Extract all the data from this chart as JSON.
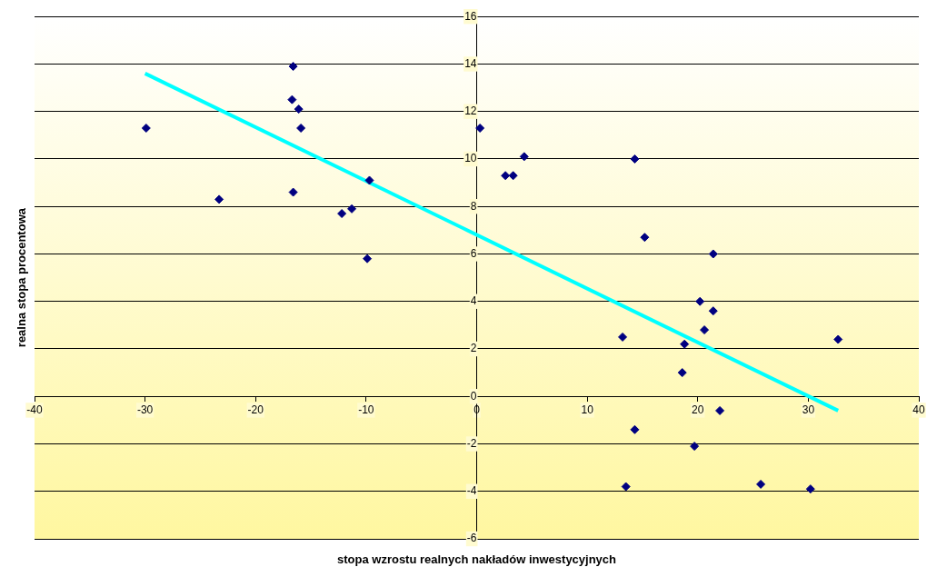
{
  "chart_data": {
    "type": "scatter",
    "xlabel": "stopa wzrostu realnych nakładów inwestycyjnych",
    "ylabel": "realna stopa procentowa",
    "xlim": [
      -40,
      40
    ],
    "xticks": [
      -40,
      -30,
      -20,
      -10,
      0,
      10,
      20,
      30,
      40
    ],
    "ylim": [
      -6,
      16
    ],
    "yticks": [
      -6,
      -4,
      -2,
      0,
      2,
      4,
      6,
      8,
      10,
      12,
      14,
      16
    ],
    "grid": "y",
    "legend": false,
    "series": [
      {
        "marker": "diamond",
        "color": "#000080",
        "x": [
          -29.9,
          -23.3,
          -16.7,
          -16.6,
          -16.1,
          -15.9,
          -16.6,
          -12.2,
          -11.3,
          -9.7,
          -9.9,
          0.3,
          2.6,
          3.3,
          4.3,
          14.3,
          15.2,
          21.4,
          20.2,
          21.4,
          20.6,
          13.2,
          18.8,
          18.6,
          32.7,
          22.0,
          14.3,
          19.7,
          13.5,
          25.7,
          30.2
        ],
        "values": [
          11.3,
          8.3,
          12.5,
          13.9,
          12.1,
          11.3,
          8.6,
          7.7,
          7.9,
          9.1,
          5.8,
          11.3,
          9.3,
          9.3,
          10.1,
          10.0,
          6.7,
          6.0,
          4.0,
          3.6,
          2.8,
          2.5,
          2.2,
          1.0,
          2.4,
          -0.6,
          -1.4,
          -2.1,
          -3.8,
          -3.7,
          -3.9
        ]
      },
      {
        "type": "line",
        "color": "#00ffff",
        "x": [
          -30,
          32.7
        ],
        "values": [
          13.6,
          -0.6
        ]
      }
    ]
  }
}
